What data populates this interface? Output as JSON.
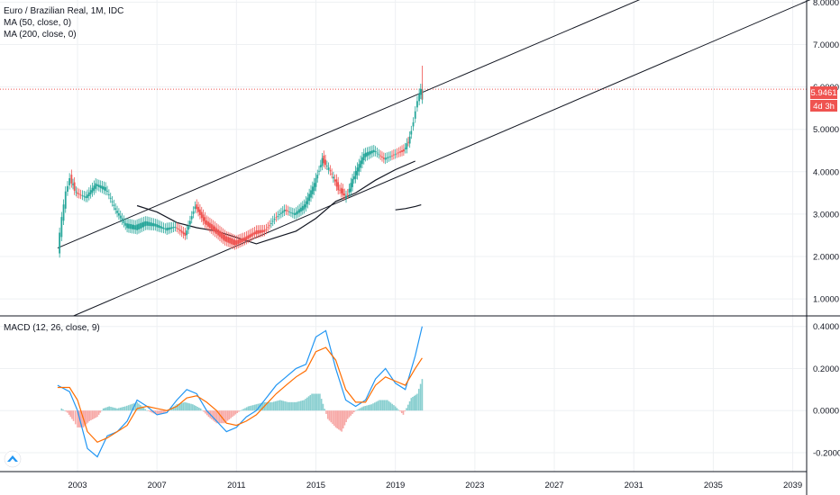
{
  "legend": {
    "title": "Euro / Brazilian Real, 1M, IDC",
    "ma50": "MA (50, close, 0)",
    "ma200": "MA (200, close, 0)",
    "macd": "MACD (12, 26, close, 9)"
  },
  "price_label": "5.9461",
  "countdown_label": "4d 3h",
  "colors": {
    "up": "#26a69a",
    "down": "#ef5350",
    "macd": "#2196f3",
    "signal": "#ff6d00",
    "hist_up": "#89cfd0",
    "hist_down": "#f7a9a7",
    "price_line": "#ef5350"
  },
  "chart_data": [
    {
      "type": "line",
      "title": "Euro / Brazilian Real, 1M, IDC",
      "x_ticks": [
        "2003",
        "2007",
        "2011",
        "2015",
        "2019",
        "2023",
        "2027",
        "2031",
        "2035",
        "2039"
      ],
      "y_ticks": [
        "1.0000",
        "2.0000",
        "3.0000",
        "4.0000",
        "5.0000",
        "6.0000",
        "7.0000",
        "8.0000"
      ],
      "ylim": [
        0.6,
        8.05
      ],
      "xlim": [
        1999.1,
        2039.7
      ],
      "grid": true,
      "last_price": 5.9461,
      "series": [
        {
          "name": "MA (50, close, 0)",
          "x": [
            2006.0,
            2007.0,
            2008.0,
            2009.0,
            2010.0,
            2011.0,
            2012.0,
            2013.0,
            2014.0,
            2015.0,
            2016.0,
            2017.0,
            2018.0,
            2019.0,
            2020.0
          ],
          "y": [
            3.2,
            3.05,
            2.8,
            2.68,
            2.6,
            2.45,
            2.3,
            2.45,
            2.6,
            2.9,
            3.3,
            3.5,
            3.8,
            4.05,
            4.25
          ]
        },
        {
          "name": "MA (200, close, 0)",
          "x": [
            2019.0,
            2019.5,
            2020.0,
            2020.3
          ],
          "y": [
            3.1,
            3.13,
            3.18,
            3.22
          ]
        },
        {
          "name": "upper channel",
          "x": [
            2002.0,
            2020.0
          ],
          "y": [
            2.2,
            5.8
          ]
        },
        {
          "name": "lower channel",
          "x": [
            2002.8,
            2020.6
          ],
          "y": [
            0.6,
            4.18
          ]
        }
      ],
      "ohlc_close": {
        "x": [
          2002.1,
          2002.3,
          2002.5,
          2002.7,
          2003.0,
          2003.5,
          2004.0,
          2004.5,
          2005.0,
          2005.5,
          2006.0,
          2006.5,
          2007.0,
          2007.5,
          2008.0,
          2008.5,
          2009.0,
          2009.5,
          2010.0,
          2010.5,
          2011.0,
          2011.5,
          2012.0,
          2012.5,
          2013.0,
          2013.5,
          2014.0,
          2014.5,
          2015.0,
          2015.4,
          2015.8,
          2016.2,
          2016.6,
          2017.0,
          2017.5,
          2018.0,
          2018.5,
          2019.0,
          2019.5,
          2019.8,
          2020.0,
          2020.2,
          2020.35
        ],
        "y": [
          2.15,
          2.9,
          3.5,
          3.85,
          3.5,
          3.4,
          3.7,
          3.6,
          3.1,
          2.75,
          2.7,
          2.8,
          2.75,
          2.65,
          2.7,
          2.5,
          3.2,
          2.8,
          2.6,
          2.4,
          2.3,
          2.4,
          2.55,
          2.6,
          2.9,
          3.1,
          3.0,
          3.2,
          3.7,
          4.3,
          4.0,
          3.6,
          3.4,
          3.9,
          4.4,
          4.5,
          4.3,
          4.4,
          4.5,
          4.8,
          5.2,
          5.7,
          5.95
        ]
      }
    },
    {
      "type": "line",
      "title": "MACD (12, 26, close, 9)",
      "y_ticks": [
        "0.4000",
        "0.2000",
        "0.0000",
        "-0.2000"
      ],
      "ylim": [
        -0.29,
        0.45
      ],
      "grid": true,
      "series": [
        {
          "name": "MACD",
          "x": [
            2002.0,
            2002.6,
            2003.0,
            2003.5,
            2004.0,
            2004.5,
            2005.0,
            2005.5,
            2006.0,
            2006.5,
            2007.0,
            2007.5,
            2008.0,
            2008.5,
            2009.0,
            2009.5,
            2010.0,
            2010.5,
            2011.0,
            2011.5,
            2012.0,
            2012.5,
            2013.0,
            2013.5,
            2014.0,
            2014.5,
            2015.0,
            2015.5,
            2016.0,
            2016.5,
            2017.0,
            2017.5,
            2018.0,
            2018.5,
            2019.0,
            2019.5,
            2020.0,
            2020.35
          ],
          "y": [
            0.12,
            0.09,
            0.0,
            -0.18,
            -0.22,
            -0.12,
            -0.1,
            -0.05,
            0.05,
            0.02,
            -0.02,
            -0.01,
            0.05,
            0.1,
            0.08,
            0.0,
            -0.05,
            -0.1,
            -0.08,
            -0.03,
            0.0,
            0.06,
            0.12,
            0.16,
            0.2,
            0.22,
            0.35,
            0.38,
            0.2,
            0.05,
            0.02,
            0.05,
            0.15,
            0.2,
            0.13,
            0.1,
            0.26,
            0.4
          ]
        },
        {
          "name": "Signal",
          "x": [
            2002.0,
            2002.6,
            2003.0,
            2003.5,
            2004.0,
            2004.5,
            2005.0,
            2005.5,
            2006.0,
            2006.5,
            2007.0,
            2007.5,
            2008.0,
            2008.5,
            2009.0,
            2009.5,
            2010.0,
            2010.5,
            2011.0,
            2011.5,
            2012.0,
            2012.5,
            2013.0,
            2013.5,
            2014.0,
            2014.5,
            2015.0,
            2015.5,
            2016.0,
            2016.5,
            2017.0,
            2017.5,
            2018.0,
            2018.5,
            2019.0,
            2019.5,
            2020.0,
            2020.35
          ],
          "y": [
            0.11,
            0.11,
            0.05,
            -0.1,
            -0.15,
            -0.13,
            -0.1,
            -0.07,
            0.01,
            0.02,
            0.01,
            0.0,
            0.02,
            0.06,
            0.07,
            0.04,
            0.0,
            -0.06,
            -0.07,
            -0.05,
            -0.02,
            0.03,
            0.08,
            0.12,
            0.16,
            0.19,
            0.28,
            0.3,
            0.24,
            0.1,
            0.04,
            0.04,
            0.12,
            0.16,
            0.14,
            0.12,
            0.2,
            0.25
          ]
        }
      ],
      "histogram": {
        "x": [
          2002.2,
          2002.5,
          2002.8,
          2003.0,
          2003.3,
          2003.6,
          2004.0,
          2004.3,
          2004.6,
          2005.0,
          2005.4,
          2006.0,
          2006.5,
          2007.0,
          2007.4,
          2008.0,
          2008.4,
          2008.8,
          2009.2,
          2009.6,
          2010.0,
          2010.4,
          2010.8,
          2011.2,
          2011.6,
          2012.0,
          2012.4,
          2012.8,
          2013.2,
          2013.6,
          2014.0,
          2014.4,
          2014.8,
          2015.2,
          2015.6,
          2016.0,
          2016.3,
          2016.6,
          2017.0,
          2017.4,
          2017.8,
          2018.2,
          2018.6,
          2019.0,
          2019.4,
          2019.8,
          2020.1,
          2020.35
        ],
        "y": [
          0.01,
          -0.01,
          -0.05,
          -0.08,
          -0.08,
          -0.05,
          -0.03,
          0.01,
          0.02,
          0.01,
          0.02,
          0.04,
          0.0,
          -0.02,
          -0.01,
          0.03,
          0.04,
          0.03,
          0.01,
          -0.03,
          -0.06,
          -0.06,
          -0.03,
          0.0,
          0.02,
          0.03,
          0.04,
          0.04,
          0.05,
          0.04,
          0.04,
          0.05,
          0.08,
          0.08,
          -0.04,
          -0.08,
          -0.1,
          -0.04,
          0.0,
          0.02,
          0.03,
          0.05,
          0.05,
          0.02,
          -0.02,
          0.06,
          0.08,
          0.15
        ]
      }
    }
  ]
}
